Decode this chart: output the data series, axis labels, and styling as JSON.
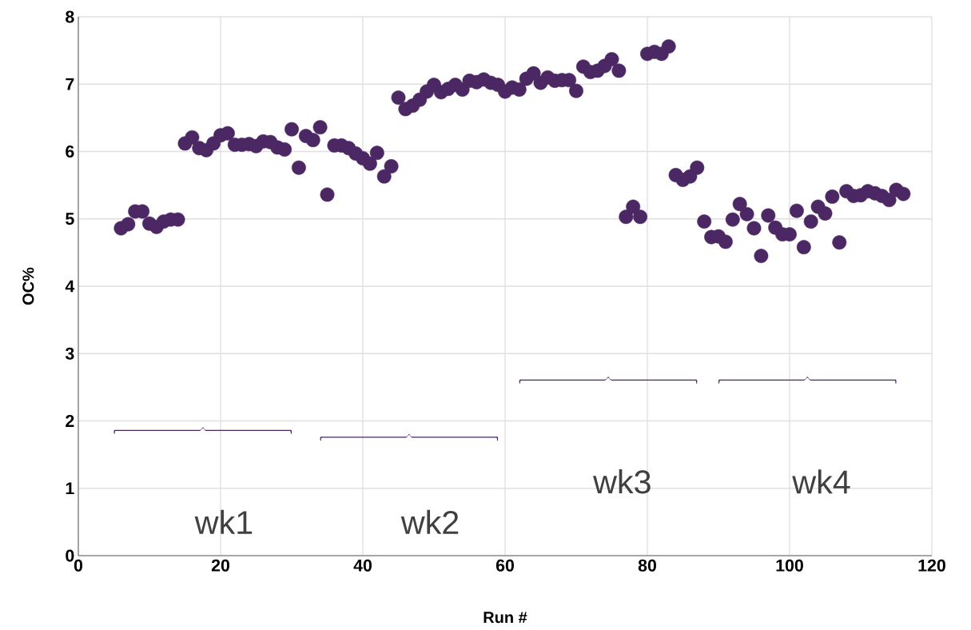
{
  "chart_data": {
    "type": "scatter",
    "xlabel": "Run #",
    "ylabel": "OC%",
    "x": [
      6,
      7,
      8,
      9,
      10,
      11,
      12,
      13,
      14,
      15,
      16,
      17,
      18,
      19,
      20,
      21,
      22,
      23,
      24,
      25,
      26,
      27,
      28,
      29,
      30,
      31,
      32,
      33,
      34,
      35,
      36,
      37,
      38,
      39,
      40,
      41,
      42,
      43,
      44,
      45,
      46,
      47,
      48,
      49,
      50,
      51,
      52,
      53,
      54,
      55,
      56,
      57,
      58,
      59,
      60,
      61,
      62,
      63,
      64,
      65,
      66,
      67,
      68,
      69,
      70,
      71,
      72,
      73,
      74,
      75,
      76,
      77,
      78,
      79,
      80,
      81,
      82,
      83,
      84,
      85,
      86,
      87,
      88,
      89,
      90,
      91,
      92,
      93,
      94,
      95,
      96,
      97,
      98,
      99,
      100,
      101,
      102,
      103,
      104,
      105,
      106,
      107,
      108,
      109,
      110,
      111,
      112,
      113,
      114,
      115,
      116
    ],
    "values": [
      4.86,
      4.92,
      5.11,
      5.11,
      4.93,
      4.88,
      4.96,
      4.99,
      4.99,
      6.12,
      6.21,
      6.05,
      6.02,
      6.12,
      6.24,
      6.27,
      6.1,
      6.1,
      6.11,
      6.08,
      6.15,
      6.14,
      6.06,
      6.03,
      6.33,
      5.76,
      6.23,
      6.17,
      6.36,
      5.36,
      6.09,
      6.09,
      6.05,
      5.97,
      5.9,
      5.82,
      5.98,
      5.63,
      5.78,
      6.8,
      6.63,
      6.68,
      6.77,
      6.89,
      6.99,
      6.88,
      6.93,
      6.99,
      6.92,
      7.05,
      7.03,
      7.07,
      7.02,
      6.99,
      6.89,
      6.95,
      6.92,
      7.08,
      7.16,
      7.02,
      7.1,
      7.05,
      7.06,
      7.06,
      6.9,
      7.26,
      7.18,
      7.2,
      7.27,
      7.37,
      7.2,
      5.03,
      5.18,
      5.03,
      7.45,
      7.48,
      7.45,
      7.56,
      5.65,
      5.58,
      5.63,
      5.76,
      4.96,
      4.73,
      4.74,
      4.66,
      4.99,
      5.22,
      5.07,
      4.86,
      4.45,
      5.05,
      4.87,
      4.77,
      4.77,
      5.12,
      4.58,
      4.96,
      5.18,
      5.08,
      5.33,
      4.65,
      5.41,
      5.34,
      5.35,
      5.41,
      5.38,
      5.34,
      5.28,
      5.43,
      5.37
    ],
    "color": "#4b2763",
    "marker": "circle",
    "grid": true,
    "xlim": [
      0,
      120
    ],
    "xticks": [
      0,
      20,
      40,
      60,
      80,
      100,
      120
    ],
    "ylim": [
      0,
      8
    ],
    "yticks": [
      0,
      1,
      2,
      3,
      4,
      5,
      6,
      7,
      8
    ],
    "annotations": [
      "wk1",
      "wk2",
      "wk3",
      "wk4"
    ]
  }
}
